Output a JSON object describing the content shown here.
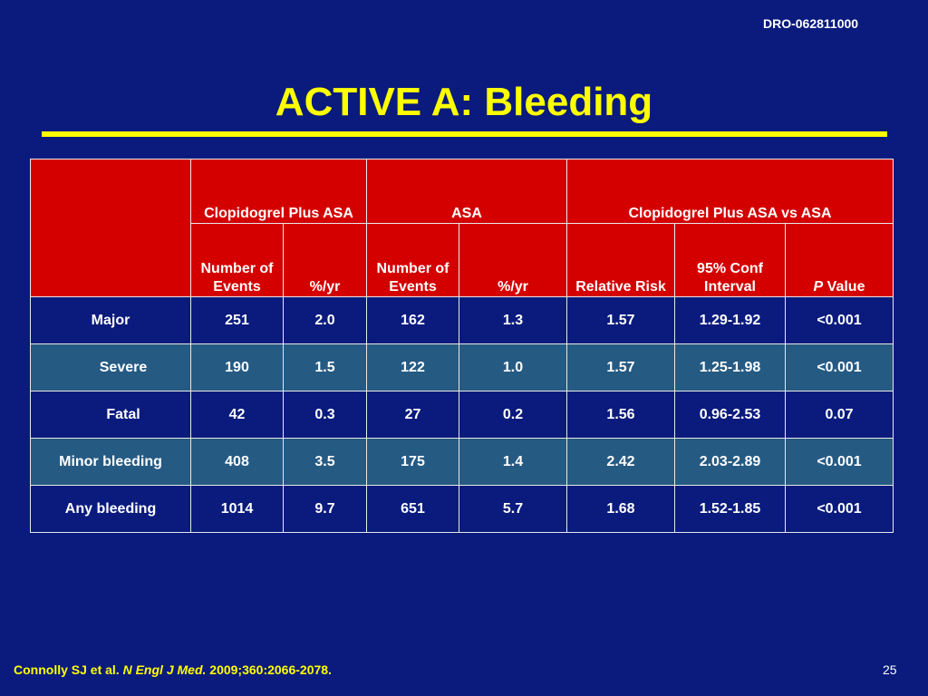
{
  "doc_id": "DRO-062811000",
  "title": "ACTIVE A: Bleeding",
  "table": {
    "group_headers": [
      "Clopidogrel Plus ASA",
      "ASA",
      "Clopidogrel Plus ASA vs ASA"
    ],
    "sub_headers": {
      "events": "Number of Events",
      "rate": "%/yr",
      "relative_risk": "Relative Risk",
      "conf_interval": "95% Conf Interval",
      "p_italic": "P",
      "p_rest": " Value"
    },
    "rows": [
      {
        "label": "Major",
        "c_events": "251",
        "c_rate": "2.0",
        "a_events": "162",
        "a_rate": "1.3",
        "rr": "1.57",
        "ci": "1.29-1.92",
        "p": "<0.001"
      },
      {
        "label": "Severe",
        "c_events": "190",
        "c_rate": "1.5",
        "a_events": "122",
        "a_rate": "1.0",
        "rr": "1.57",
        "ci": "1.25-1.98",
        "p": "<0.001"
      },
      {
        "label": "Fatal",
        "c_events": "42",
        "c_rate": "0.3",
        "a_events": "27",
        "a_rate": "0.2",
        "rr": "1.56",
        "ci": "0.96-2.53",
        "p": "0.07"
      },
      {
        "label": "Minor bleeding",
        "c_events": "408",
        "c_rate": "3.5",
        "a_events": "175",
        "a_rate": "1.4",
        "rr": "2.42",
        "ci": "2.03-2.89",
        "p": "<0.001"
      },
      {
        "label": "Any bleeding",
        "c_events": "1014",
        "c_rate": "9.7",
        "a_events": "651",
        "a_rate": "5.7",
        "rr": "1.68",
        "ci": "1.52-1.85",
        "p": "<0.001"
      }
    ]
  },
  "citation": {
    "authors": "Connolly SJ et al. ",
    "journal": "N Engl J Med.",
    "details": " 2009;360:2066-2078."
  },
  "page_number": "25",
  "colors": {
    "background": "#0a1b7d",
    "title": "#ffff00",
    "header_fill": "#d40000",
    "alt_row_fill": "#255a83"
  }
}
